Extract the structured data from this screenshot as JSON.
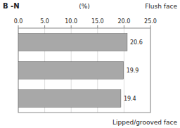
{
  "chart_data": {
    "type": "bar",
    "orientation": "horizontal",
    "title": "B -N",
    "xlabel": "(%)",
    "annotations": [
      "Flush face",
      "Lipped/grooved face"
    ],
    "categories": [
      null,
      null,
      null
    ],
    "values": [
      20.6,
      19.9,
      19.4
    ],
    "color": "#a8a8a8",
    "data_labels": true,
    "tick_labels": "x",
    "grid": true,
    "xlim": [
      0.0,
      25.0
    ],
    "xticks": [
      {
        "value": 0.0,
        "label": "0.0"
      },
      {
        "value": 5.0,
        "label": "5.0"
      },
      {
        "value": 10.0,
        "label": "10.0"
      },
      {
        "value": 15.0,
        "label": "15.0"
      },
      {
        "value": 20.0,
        "label": "20.0"
      },
      {
        "value": 25.0,
        "label": "25.0"
      }
    ]
  }
}
